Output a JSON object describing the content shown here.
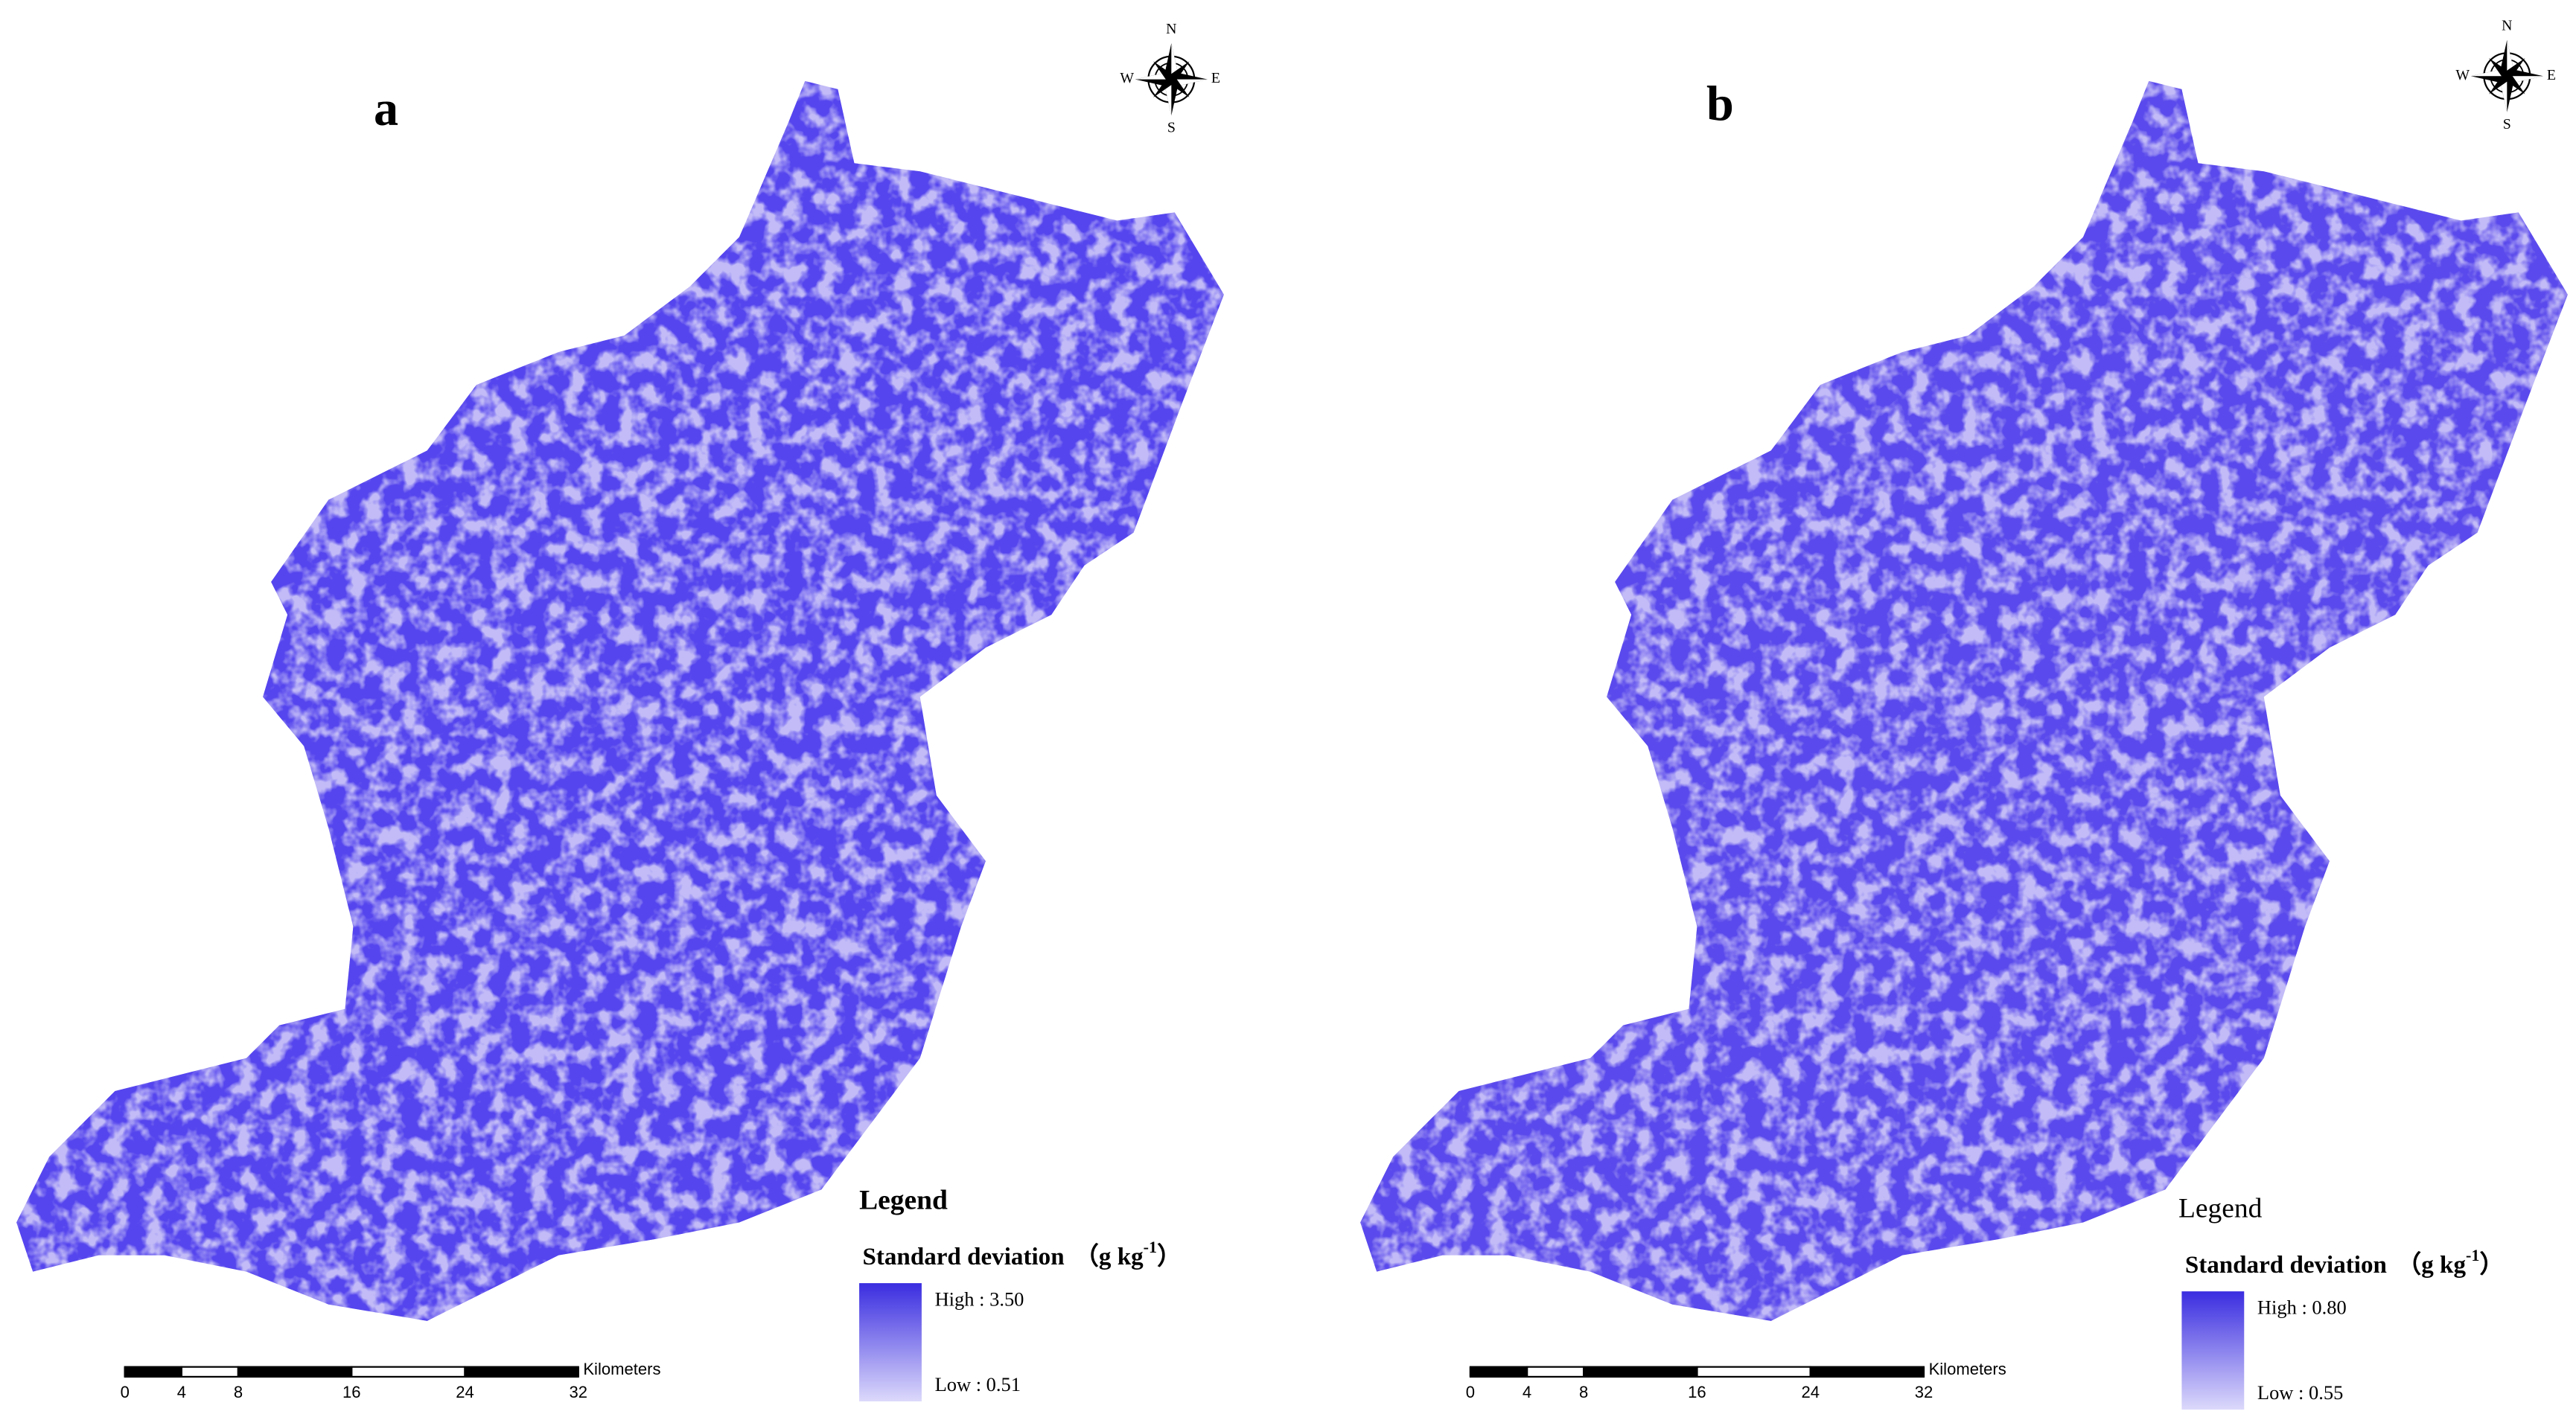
{
  "panels": [
    {
      "label": "a",
      "compass": {
        "n": "N",
        "e": "E",
        "s": "S",
        "w": "W"
      },
      "legend": {
        "heading": "Legend",
        "title": "Standard deviation",
        "unit": "（g kg",
        "exponent": "-1",
        "unit_close": "）",
        "high": "High : 3.50",
        "low": "Low : 0.51"
      },
      "scale_bar": {
        "ticks": [
          0,
          4,
          8,
          16,
          24,
          32
        ],
        "unit": "Kilometers"
      }
    },
    {
      "label": "b",
      "compass": {
        "n": "N",
        "e": "E",
        "s": "S",
        "w": "W"
      },
      "legend": {
        "heading": "Legend",
        "title": "Standard deviation",
        "unit": "（g kg",
        "exponent": "-1",
        "unit_close": "）",
        "high": "High : 0.80",
        "low": "Low : 0.55"
      },
      "scale_bar": {
        "ticks": [
          0,
          4,
          8,
          16,
          24,
          32
        ],
        "unit": "Kilometers"
      }
    }
  ]
}
